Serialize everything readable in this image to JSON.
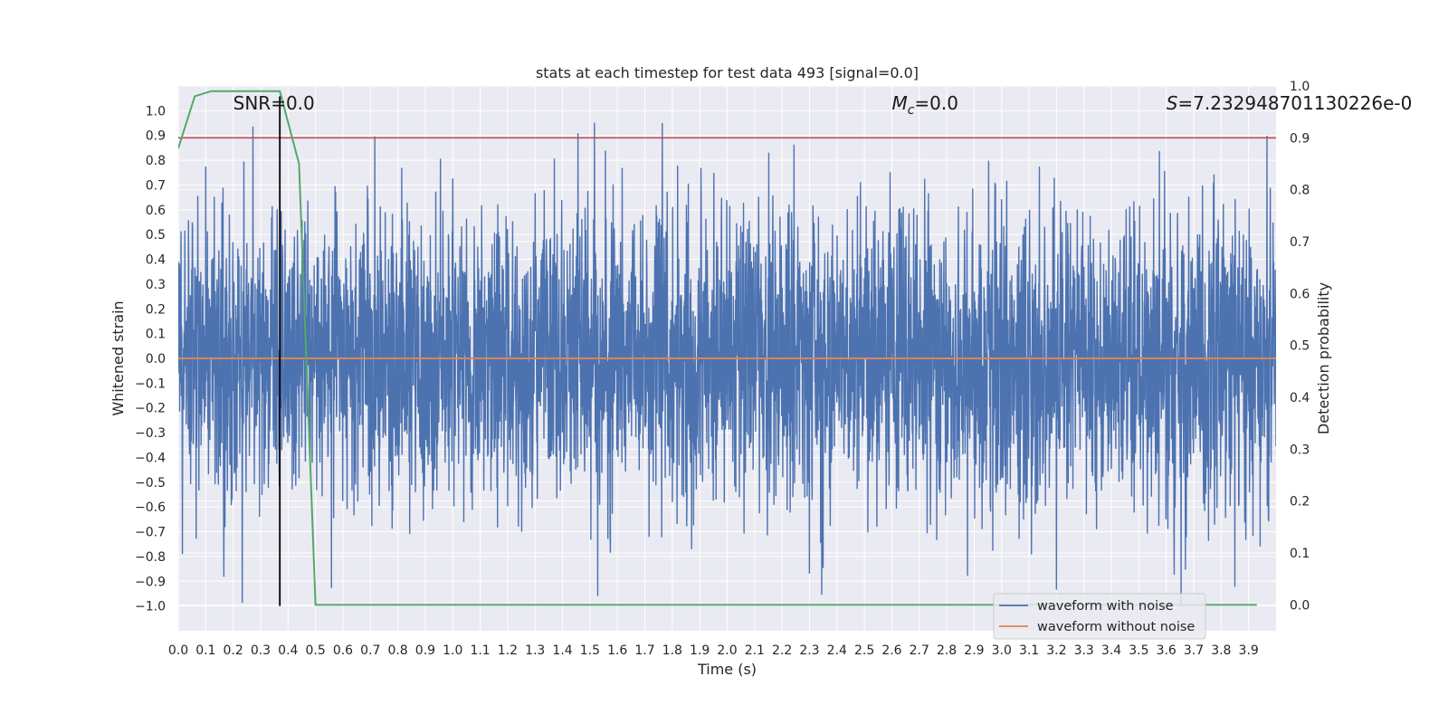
{
  "chart_data": {
    "type": "line",
    "title": "stats at each timestep for test data 493 [signal=0.0]",
    "xlabel": "Time (s)",
    "ylabel": "Whitened strain",
    "y2label": "Detection probability",
    "xlim": [
      0.0,
      4.0
    ],
    "ylim": [
      -1.1,
      1.1
    ],
    "y2lim": [
      -0.05,
      1.0
    ],
    "x_ticks": [
      "0.0",
      "0.1",
      "0.2",
      "0.3",
      "0.4",
      "0.5",
      "0.6",
      "0.7",
      "0.8",
      "0.9",
      "1.0",
      "1.1",
      "1.2",
      "1.3",
      "1.4",
      "1.5",
      "1.6",
      "1.7",
      "1.8",
      "1.9",
      "2.0",
      "2.1",
      "2.2",
      "2.3",
      "2.4",
      "2.5",
      "2.6",
      "2.7",
      "2.8",
      "2.9",
      "3.0",
      "3.1",
      "3.2",
      "3.3",
      "3.4",
      "3.5",
      "3.6",
      "3.7",
      "3.8",
      "3.9"
    ],
    "y_ticks": [
      "1.0",
      "0.9",
      "0.8",
      "0.7",
      "0.6",
      "0.5",
      "0.4",
      "0.3",
      "0.2",
      "0.1",
      "0.0",
      "−0.1",
      "−0.2",
      "−0.3",
      "−0.4",
      "−0.5",
      "−0.6",
      "−0.7",
      "−0.8",
      "−0.9",
      "−1.0"
    ],
    "y2_ticks": [
      "0.0",
      "0.1",
      "0.2",
      "0.3",
      "0.4",
      "0.5",
      "0.6",
      "0.7",
      "0.8",
      "0.9",
      "1.0"
    ],
    "annotations": {
      "snr": "SNR=0.0",
      "mc_symbol": "M",
      "mc_sub": "c",
      "mc_value": "=0.0",
      "s_symbol": "S",
      "s_value": "=7.232948701130226e-0"
    },
    "series": [
      {
        "name": "waveform with noise",
        "color": "#4c72b0",
        "axis": "left",
        "noise_envelope": {
          "x_range": [
            0.0,
            4.0
          ],
          "typical_amplitude": 0.3,
          "max_peak": 0.95,
          "min_trough": -1.0
        }
      },
      {
        "name": "waveform without noise",
        "color": "#dd8452",
        "axis": "left",
        "x": [
          0.0,
          4.0
        ],
        "y": [
          0.0,
          0.0
        ]
      },
      {
        "color": "#55a868",
        "axis": "right",
        "x": [
          0.0,
          0.06,
          0.12,
          0.2,
          0.25,
          0.3,
          0.37,
          0.44,
          0.5,
          0.6,
          1.0,
          2.0,
          3.0,
          3.93
        ],
        "y": [
          0.88,
          0.98,
          0.99,
          0.99,
          0.99,
          0.99,
          0.99,
          0.85,
          0.0,
          0.0,
          0.0,
          0.0,
          0.0,
          0.0
        ]
      }
    ],
    "threshold": {
      "value": 0.9,
      "axis": "right",
      "color": "#c44e52"
    },
    "marker_line": {
      "x": 0.37,
      "y_top": 0.98,
      "y_bottom": -1.0,
      "color": "#000000"
    },
    "legend": {
      "placement": "lower-right",
      "entries": [
        {
          "label": "waveform with noise",
          "color": "#4c72b0"
        },
        {
          "label": "waveform without noise",
          "color": "#dd8452"
        }
      ]
    },
    "grid": true,
    "plot_background": "#eaeaf2"
  }
}
